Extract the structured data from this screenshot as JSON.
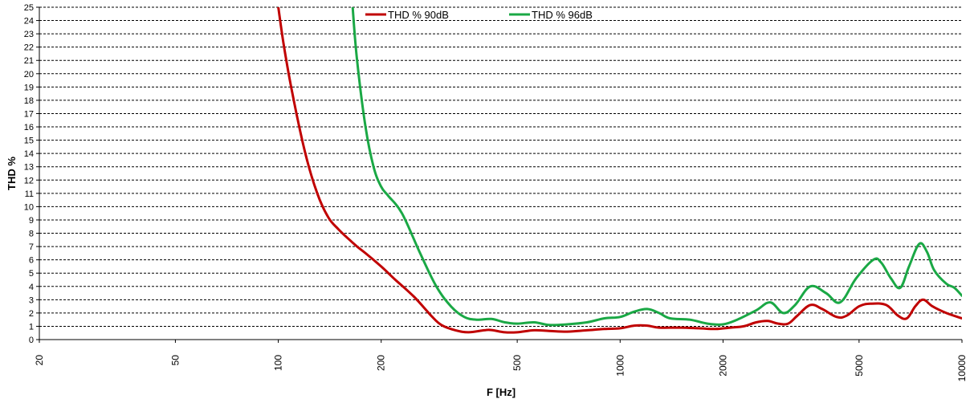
{
  "chart_data": {
    "type": "line",
    "title": "",
    "xlabel": "F [Hz]",
    "ylabel": "THD %",
    "xscale": "log",
    "xlim": [
      20,
      10000
    ],
    "ylim": [
      0,
      25
    ],
    "x_ticks": [
      20,
      50,
      100,
      200,
      500,
      1000,
      2000,
      5000,
      10000
    ],
    "y_ticks": [
      0,
      1,
      2,
      3,
      4,
      5,
      6,
      7,
      8,
      9,
      10,
      11,
      12,
      13,
      14,
      15,
      16,
      17,
      18,
      19,
      20,
      21,
      22,
      23,
      24,
      25
    ],
    "grid": "horizontal dashed",
    "legend_position": "top-center",
    "series": [
      {
        "name": "THD % 90dB",
        "color": "#c00000",
        "points": [
          [
            100,
            25
          ],
          [
            104,
            22
          ],
          [
            110,
            18.5
          ],
          [
            120,
            14
          ],
          [
            130,
            11
          ],
          [
            140,
            9.2
          ],
          [
            150,
            8.3
          ],
          [
            160,
            7.6
          ],
          [
            170,
            7.0
          ],
          [
            180,
            6.5
          ],
          [
            200,
            5.5
          ],
          [
            220,
            4.5
          ],
          [
            250,
            3.2
          ],
          [
            280,
            1.8
          ],
          [
            300,
            1.1
          ],
          [
            330,
            0.7
          ],
          [
            360,
            0.55
          ],
          [
            400,
            0.7
          ],
          [
            420,
            0.72
          ],
          [
            460,
            0.55
          ],
          [
            500,
            0.55
          ],
          [
            560,
            0.7
          ],
          [
            620,
            0.65
          ],
          [
            700,
            0.6
          ],
          [
            800,
            0.7
          ],
          [
            900,
            0.8
          ],
          [
            1000,
            0.85
          ],
          [
            1100,
            1.05
          ],
          [
            1200,
            1.05
          ],
          [
            1300,
            0.9
          ],
          [
            1500,
            0.9
          ],
          [
            1700,
            0.85
          ],
          [
            1900,
            0.8
          ],
          [
            2100,
            0.9
          ],
          [
            2300,
            1.0
          ],
          [
            2500,
            1.3
          ],
          [
            2700,
            1.4
          ],
          [
            2900,
            1.2
          ],
          [
            3100,
            1.2
          ],
          [
            3300,
            1.8
          ],
          [
            3600,
            2.6
          ],
          [
            3900,
            2.3
          ],
          [
            4300,
            1.7
          ],
          [
            4600,
            1.8
          ],
          [
            5000,
            2.5
          ],
          [
            5400,
            2.7
          ],
          [
            6000,
            2.6
          ],
          [
            6500,
            1.8
          ],
          [
            6900,
            1.6
          ],
          [
            7300,
            2.5
          ],
          [
            7700,
            3.0
          ],
          [
            8200,
            2.5
          ],
          [
            9000,
            2.0
          ],
          [
            10000,
            1.6
          ]
        ]
      },
      {
        "name": "THD % 96dB",
        "color": "#1aa845",
        "points": [
          [
            165,
            25
          ],
          [
            170,
            21
          ],
          [
            180,
            16
          ],
          [
            190,
            13
          ],
          [
            200,
            11.5
          ],
          [
            210,
            10.8
          ],
          [
            230,
            9.5
          ],
          [
            260,
            6.5
          ],
          [
            290,
            4.0
          ],
          [
            320,
            2.5
          ],
          [
            350,
            1.7
          ],
          [
            380,
            1.5
          ],
          [
            420,
            1.55
          ],
          [
            460,
            1.3
          ],
          [
            500,
            1.2
          ],
          [
            560,
            1.3
          ],
          [
            620,
            1.1
          ],
          [
            700,
            1.15
          ],
          [
            800,
            1.3
          ],
          [
            900,
            1.6
          ],
          [
            1000,
            1.7
          ],
          [
            1100,
            2.1
          ],
          [
            1200,
            2.3
          ],
          [
            1300,
            2.0
          ],
          [
            1400,
            1.6
          ],
          [
            1600,
            1.5
          ],
          [
            1800,
            1.2
          ],
          [
            2000,
            1.15
          ],
          [
            2200,
            1.5
          ],
          [
            2500,
            2.2
          ],
          [
            2750,
            2.8
          ],
          [
            3000,
            2.0
          ],
          [
            3250,
            2.6
          ],
          [
            3600,
            4.0
          ],
          [
            4000,
            3.5
          ],
          [
            4400,
            2.8
          ],
          [
            4900,
            4.6
          ],
          [
            5500,
            6.0
          ],
          [
            5800,
            5.8
          ],
          [
            6200,
            4.6
          ],
          [
            6600,
            3.9
          ],
          [
            7000,
            5.5
          ],
          [
            7500,
            7.2
          ],
          [
            7900,
            6.6
          ],
          [
            8300,
            5.2
          ],
          [
            9000,
            4.2
          ],
          [
            9500,
            3.9
          ],
          [
            10000,
            3.3
          ]
        ]
      }
    ]
  }
}
